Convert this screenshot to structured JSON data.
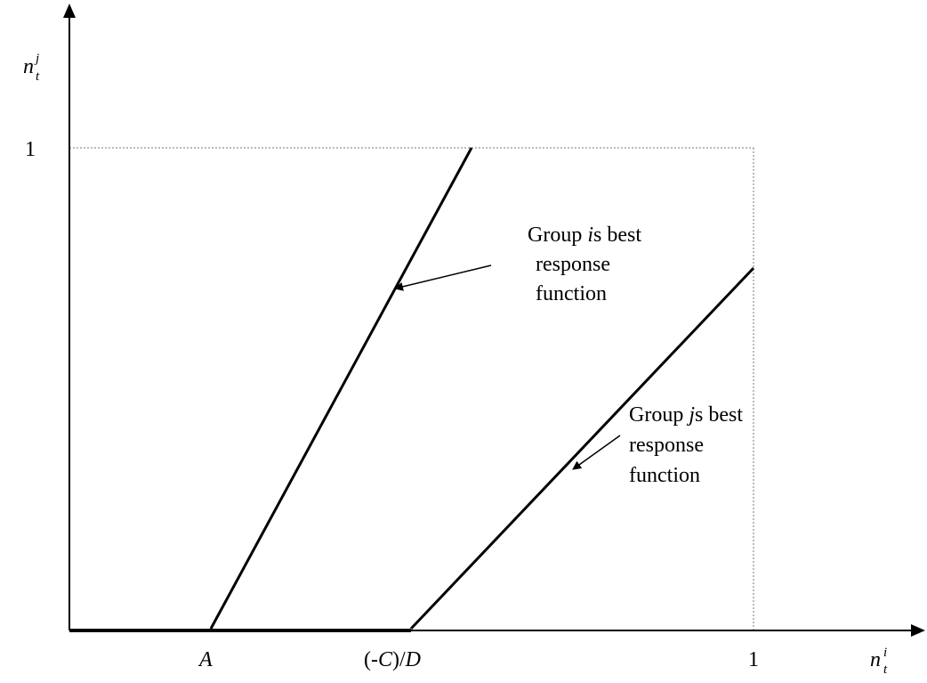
{
  "axes": {
    "y_label": {
      "base": "n",
      "sup": "j",
      "sub": "t"
    },
    "x_label": {
      "base": "n",
      "sup": "i",
      "sub": "t"
    },
    "y_tick_1": "1",
    "x_tick_a": "A",
    "x_tick_cd": {
      "open": "(-",
      "c": "C",
      "mid": ")/",
      "d": "D"
    },
    "x_tick_1": "1"
  },
  "annotations": {
    "group_i": {
      "line1_pre": "Group ",
      "line1_ital": "i",
      "line1_post": "s best",
      "line2": "response",
      "line3": "function"
    },
    "group_j": {
      "line1_pre": "Group ",
      "line1_ital": "j",
      "line1_post": "s best",
      "line2": "response",
      "line3": "function"
    }
  }
}
